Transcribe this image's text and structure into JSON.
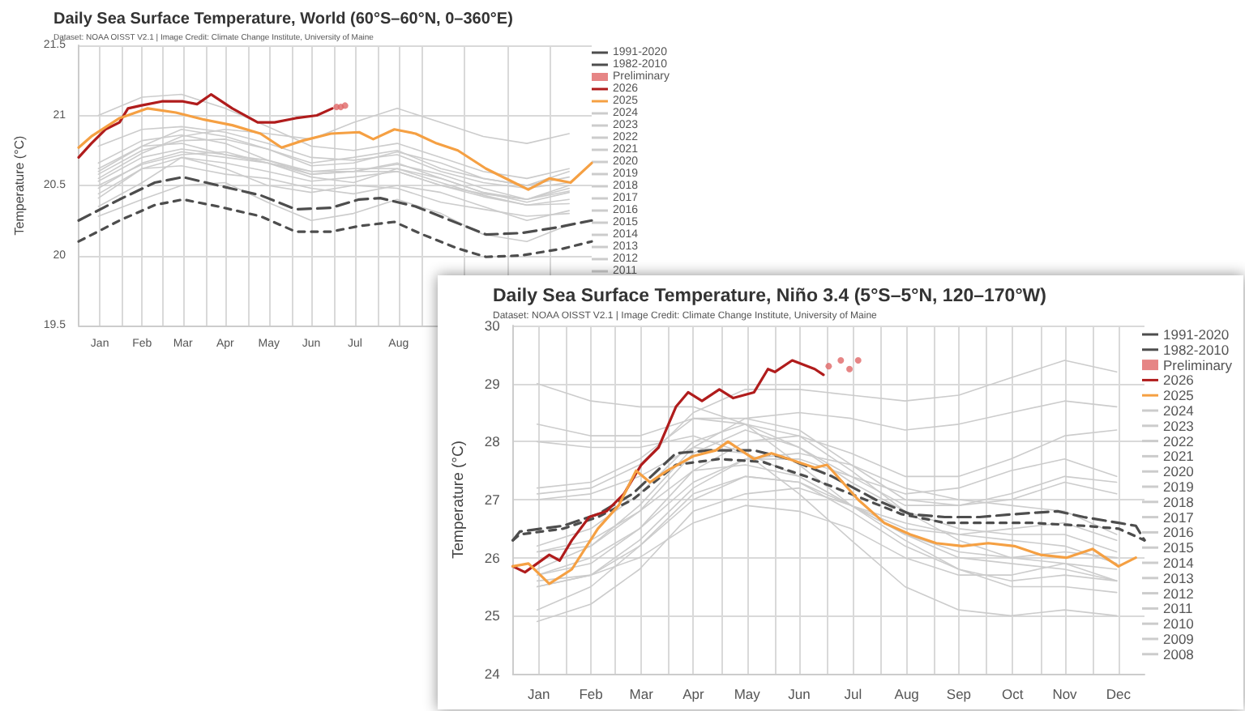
{
  "chart_data": [
    {
      "type": "line",
      "title": "Daily Sea Surface Temperature, World (60°S–60°N, 0–360°E)",
      "subtitle": "Dataset: NOAA OISST V2.1 | Image Credit: Climate Change Institute, University of Maine",
      "ylabel": "Temperature (°C)",
      "xlim": [
        "--01-01",
        "--12-31"
      ],
      "xticks": [
        {
          "value": "--01-16",
          "label": "Jan"
        },
        {
          "value": "--02-01",
          "label": null
        },
        {
          "value": "--02-15",
          "label": "Feb"
        },
        {
          "value": "--03-01",
          "label": null
        },
        {
          "value": "--03-16",
          "label": "Mar"
        },
        {
          "value": "--04-01",
          "label": null
        },
        {
          "value": "--04-15",
          "label": "Apr"
        },
        {
          "value": "--05-01",
          "label": null
        },
        {
          "value": "--05-16",
          "label": "May"
        },
        {
          "value": "--06-01",
          "label": null
        },
        {
          "value": "--06-15",
          "label": "Jun"
        },
        {
          "value": "--07-01",
          "label": null
        },
        {
          "value": "--07-16",
          "label": "Jul"
        },
        {
          "value": "--08-01",
          "label": null
        },
        {
          "value": "--08-16",
          "label": "Aug"
        },
        {
          "value": "--09-01",
          "label": null
        },
        {
          "value": "--10-01",
          "label": null
        },
        {
          "value": "--11-01",
          "label": null
        },
        {
          "value": "--12-01",
          "label": null
        }
      ],
      "ylim": [
        19.5,
        21.5
      ],
      "yticks": [
        19.5,
        20,
        20.5,
        21,
        21.5
      ],
      "grid": true,
      "legend": "right",
      "marker": "none",
      "series": [
        {
          "name": "1991-2020",
          "color": "#4d4d4d",
          "line_style": "dashed",
          "x": [
            "--01-01",
            "--01-30",
            "--02-24",
            "--03-16",
            "--04-10",
            "--05-10",
            "--06-04",
            "--06-29",
            "--07-19",
            "--08-03",
            "--08-28",
            "--09-22",
            "--10-17",
            "--11-11",
            "--12-06",
            "--12-31"
          ],
          "values": [
            20.25,
            20.4,
            20.52,
            20.56,
            20.5,
            20.43,
            20.33,
            20.34,
            20.4,
            20.41,
            20.35,
            20.25,
            20.15,
            20.16,
            20.2,
            20.25
          ]
        },
        {
          "name": "1982-2010",
          "color": "#4d4d4d",
          "line_style": "dotted",
          "x": [
            "--01-01",
            "--01-30",
            "--02-24",
            "--03-16",
            "--04-10",
            "--05-10",
            "--06-04",
            "--06-29",
            "--07-19",
            "--08-13",
            "--09-02",
            "--09-27",
            "--10-17",
            "--11-11",
            "--12-11",
            "--12-31"
          ],
          "values": [
            20.1,
            20.25,
            20.36,
            20.4,
            20.35,
            20.28,
            20.17,
            20.17,
            20.21,
            20.24,
            20.15,
            20.05,
            19.99,
            20.0,
            20.05,
            20.1
          ]
        },
        {
          "name": "Preliminary",
          "type": "scatter",
          "marker": "circle",
          "color": "#e06666",
          "x": [
            "--07-03",
            "--07-06",
            "--07-09"
          ],
          "values": [
            21.06,
            21.06,
            21.07
          ]
        },
        {
          "name": "2026",
          "color": "#b01c1c",
          "x": [
            "--01-01",
            "--01-10",
            "--01-20",
            "--01-30",
            "--02-05",
            "--02-14",
            "--03-01",
            "--03-16",
            "--03-26",
            "--04-05",
            "--04-20",
            "--05-08",
            "--05-20",
            "--06-04",
            "--06-19",
            "--06-30"
          ],
          "values": [
            20.7,
            20.8,
            20.9,
            20.95,
            21.05,
            21.07,
            21.1,
            21.1,
            21.08,
            21.15,
            21.05,
            20.95,
            20.95,
            20.98,
            21.0,
            21.05
          ]
        },
        {
          "name": "2025",
          "color": "#f5a043",
          "x": [
            "--01-01",
            "--01-10",
            "--01-30",
            "--02-19",
            "--03-11",
            "--03-31",
            "--04-20",
            "--05-10",
            "--05-25",
            "--06-09",
            "--06-29",
            "--07-19",
            "--07-29",
            "--08-13",
            "--08-28",
            "--09-12",
            "--09-27",
            "--10-17",
            "--11-06",
            "--11-16",
            "--12-01",
            "--12-16",
            "--12-31"
          ],
          "values": [
            20.77,
            20.85,
            20.98,
            21.05,
            21.02,
            20.97,
            20.93,
            20.87,
            20.77,
            20.82,
            20.87,
            20.88,
            20.83,
            20.9,
            20.87,
            20.8,
            20.75,
            20.62,
            20.52,
            20.47,
            20.55,
            20.52,
            20.66
          ]
        },
        {
          "name": "2024",
          "color": "#cccccc",
          "x": [
            "--01-15",
            "--02-15",
            "--03-15",
            "--04-15",
            "--05-15",
            "--06-15",
            "--07-15",
            "--08-15",
            "--09-15",
            "--10-15",
            "--11-15",
            "--12-15"
          ],
          "values": [
            21.0,
            21.13,
            21.15,
            21.05,
            20.92,
            20.78,
            20.75,
            20.8,
            20.7,
            20.6,
            20.55,
            20.62
          ]
        },
        {
          "name": "2023",
          "color": "#cccccc",
          "x": [
            "--01-15",
            "--02-15",
            "--03-15",
            "--04-15",
            "--05-15",
            "--06-15",
            "--07-15",
            "--08-15",
            "--09-15",
            "--10-15",
            "--11-15",
            "--12-15"
          ],
          "values": [
            20.55,
            20.73,
            20.85,
            20.9,
            20.87,
            20.83,
            20.95,
            21.05,
            20.95,
            20.85,
            20.8,
            20.87
          ]
        },
        {
          "name": "2022",
          "color": "#cccccc",
          "x": [
            "--01-15",
            "--02-15",
            "--03-15",
            "--04-15",
            "--05-15",
            "--06-15",
            "--07-15",
            "--08-15",
            "--09-15",
            "--10-15",
            "--11-15",
            "--12-15"
          ],
          "values": [
            20.53,
            20.7,
            20.76,
            20.72,
            20.68,
            20.6,
            20.62,
            20.62,
            20.52,
            20.43,
            20.36,
            20.37
          ]
        },
        {
          "name": "2021",
          "color": "#cccccc",
          "x": [
            "--01-15",
            "--02-15",
            "--03-15",
            "--04-15",
            "--05-15",
            "--06-15",
            "--07-15",
            "--08-15",
            "--09-15",
            "--10-15",
            "--11-15",
            "--12-15"
          ],
          "values": [
            20.44,
            20.62,
            20.7,
            20.66,
            20.6,
            20.53,
            20.56,
            20.6,
            20.5,
            20.42,
            20.36,
            20.4
          ]
        },
        {
          "name": "2020",
          "color": "#cccccc",
          "x": [
            "--01-15",
            "--02-15",
            "--03-15",
            "--04-15",
            "--05-15",
            "--06-15",
            "--07-15",
            "--08-15",
            "--09-15",
            "--10-15",
            "--11-15",
            "--12-15"
          ],
          "values": [
            20.66,
            20.82,
            20.86,
            20.8,
            20.68,
            20.58,
            20.6,
            20.66,
            20.55,
            20.45,
            20.4,
            20.5
          ]
        },
        {
          "name": "2019",
          "color": "#cccccc",
          "x": [
            "--01-15",
            "--02-15",
            "--03-15",
            "--04-15",
            "--05-15",
            "--06-15",
            "--07-15",
            "--08-15",
            "--09-15",
            "--10-15",
            "--11-15",
            "--12-15"
          ],
          "values": [
            20.62,
            20.78,
            20.9,
            20.85,
            20.76,
            20.64,
            20.66,
            20.74,
            20.66,
            20.55,
            20.5,
            20.56
          ]
        },
        {
          "name": "2018",
          "color": "#cccccc",
          "x": [
            "--01-15",
            "--02-15",
            "--03-15",
            "--04-15",
            "--05-15",
            "--06-15",
            "--07-15",
            "--08-15",
            "--09-15",
            "--10-15",
            "--11-15",
            "--12-15"
          ],
          "values": [
            20.48,
            20.66,
            20.74,
            20.7,
            20.66,
            20.58,
            20.6,
            20.6,
            20.5,
            20.44,
            20.4,
            20.48
          ]
        },
        {
          "name": "2017",
          "color": "#cccccc",
          "x": [
            "--01-15",
            "--02-15",
            "--03-15",
            "--04-15",
            "--05-15",
            "--06-15",
            "--07-15",
            "--08-15",
            "--09-15",
            "--10-15",
            "--11-15",
            "--12-15"
          ],
          "values": [
            20.6,
            20.78,
            20.8,
            20.72,
            20.66,
            20.6,
            20.6,
            20.65,
            20.58,
            20.48,
            20.4,
            20.46
          ]
        },
        {
          "name": "2016",
          "color": "#cccccc",
          "x": [
            "--01-15",
            "--02-15",
            "--03-15",
            "--04-15",
            "--05-15",
            "--06-15",
            "--07-15",
            "--08-15",
            "--09-15",
            "--10-15",
            "--11-15",
            "--12-15"
          ],
          "values": [
            20.78,
            20.9,
            20.92,
            20.88,
            20.8,
            20.7,
            20.68,
            20.72,
            20.6,
            20.52,
            20.48,
            20.52
          ]
        },
        {
          "name": "2015",
          "color": "#cccccc",
          "x": [
            "--01-15",
            "--02-15",
            "--03-15",
            "--04-15",
            "--05-15",
            "--06-15",
            "--07-15",
            "--08-15",
            "--09-15",
            "--10-15",
            "--11-15",
            "--12-15"
          ],
          "values": [
            20.58,
            20.75,
            20.82,
            20.83,
            20.76,
            20.66,
            20.7,
            20.75,
            20.62,
            20.55,
            20.5,
            20.6
          ]
        },
        {
          "name": "2014",
          "color": "#cccccc",
          "x": [
            "--01-15",
            "--02-15",
            "--03-15",
            "--04-15",
            "--05-15",
            "--06-15",
            "--07-15",
            "--08-15",
            "--09-15",
            "--10-15",
            "--11-15",
            "--12-15"
          ],
          "values": [
            20.5,
            20.65,
            20.72,
            20.74,
            20.66,
            20.56,
            20.52,
            20.62,
            20.55,
            20.45,
            20.38,
            20.45
          ]
        },
        {
          "name": "2013",
          "color": "#cccccc",
          "x": [
            "--01-15",
            "--02-15",
            "--03-15",
            "--04-15",
            "--05-15",
            "--06-15",
            "--07-15",
            "--08-15",
            "--09-15",
            "--10-15",
            "--11-15",
            "--12-15"
          ],
          "values": [
            20.41,
            20.62,
            20.64,
            20.58,
            20.55,
            20.48,
            20.44,
            20.5,
            20.45,
            20.35,
            20.25,
            20.32
          ]
        },
        {
          "name": "2012",
          "color": "#cccccc",
          "x": [
            "--01-15",
            "--02-15",
            "--03-15",
            "--04-15",
            "--05-15",
            "--06-15",
            "--07-15",
            "--08-15",
            "--09-15",
            "--10-15",
            "--11-15",
            "--12-15"
          ],
          "values": [
            20.35,
            20.52,
            20.7,
            20.62,
            20.5,
            20.45,
            20.5,
            20.48,
            20.38,
            20.33,
            20.28,
            20.3
          ]
        },
        {
          "name": "2011",
          "color": "#cccccc",
          "x": [
            "--01-15",
            "--02-15",
            "--03-15",
            "--04-15",
            "--05-15",
            "--06-15",
            "--07-15",
            "--08-15",
            "--09-15",
            "--10-15",
            "--11-15",
            "--12-15"
          ],
          "values": [
            20.28,
            20.4,
            20.5,
            20.52,
            20.38,
            20.25,
            20.3,
            20.4,
            20.3,
            20.15,
            20.1,
            20.22
          ]
        }
      ]
    },
    {
      "type": "line",
      "title": "Daily Sea Surface Temperature, Niño 3.4 (5°S–5°N, 120–170°W)",
      "subtitle": "Dataset: NOAA OISST V2.1 | Image Credit: Climate Change Institute, University of Maine",
      "ylabel": "Temperature (°C)",
      "xlim": [
        "--01-01",
        "--12-31"
      ],
      "xticks": [
        {
          "value": "--01-16",
          "label": "Jan"
        },
        {
          "value": "--02-01",
          "label": null
        },
        {
          "value": "--02-15",
          "label": "Feb"
        },
        {
          "value": "--03-01",
          "label": null
        },
        {
          "value": "--03-16",
          "label": "Mar"
        },
        {
          "value": "--04-01",
          "label": null
        },
        {
          "value": "--04-15",
          "label": "Apr"
        },
        {
          "value": "--05-01",
          "label": null
        },
        {
          "value": "--05-16",
          "label": "May"
        },
        {
          "value": "--06-01",
          "label": null
        },
        {
          "value": "--06-15",
          "label": "Jun"
        },
        {
          "value": "--07-01",
          "label": null
        },
        {
          "value": "--07-16",
          "label": "Jul"
        },
        {
          "value": "--08-01",
          "label": null
        },
        {
          "value": "--08-16",
          "label": "Aug"
        },
        {
          "value": "--09-01",
          "label": null
        },
        {
          "value": "--09-15",
          "label": "Sep"
        },
        {
          "value": "--10-01",
          "label": null
        },
        {
          "value": "--10-16",
          "label": "Oct"
        },
        {
          "value": "--11-01",
          "label": null
        },
        {
          "value": "--11-15",
          "label": "Nov"
        },
        {
          "value": "--12-01",
          "label": null
        },
        {
          "value": "--12-16",
          "label": "Dec"
        }
      ],
      "ylim": [
        24,
        30
      ],
      "yticks": [
        24,
        25,
        26,
        27,
        28,
        29,
        30
      ],
      "grid": true,
      "legend": "right",
      "marker": "none",
      "series": [
        {
          "name": "1991-2020",
          "color": "#4d4d4d",
          "line_style": "dashed",
          "x": [
            "--01-01",
            "--01-05",
            "--01-30",
            "--02-19",
            "--03-11",
            "--04-05",
            "--04-25",
            "--05-20",
            "--06-09",
            "--07-04",
            "--07-29",
            "--08-18",
            "--09-07",
            "--09-27",
            "--10-17",
            "--11-11",
            "--11-26",
            "--12-16",
            "--12-26",
            "--12-31"
          ],
          "values": [
            26.3,
            26.45,
            26.55,
            26.75,
            27.1,
            27.8,
            27.85,
            27.85,
            27.7,
            27.4,
            27.0,
            26.75,
            26.7,
            26.7,
            26.75,
            26.8,
            26.7,
            26.6,
            26.55,
            26.3
          ]
        },
        {
          "name": "1982-2010",
          "color": "#4d4d4d",
          "line_style": "dotted",
          "x": [
            "--01-01",
            "--01-05",
            "--01-30",
            "--02-19",
            "--03-11",
            "--04-05",
            "--04-30",
            "--05-25",
            "--06-19",
            "--07-19",
            "--08-13",
            "--09-07",
            "--10-02",
            "--10-27",
            "--11-26",
            "--12-16",
            "--12-31"
          ],
          "values": [
            26.3,
            26.4,
            26.5,
            26.7,
            27.0,
            27.6,
            27.7,
            27.65,
            27.4,
            27.05,
            26.75,
            26.6,
            26.6,
            26.6,
            26.55,
            26.5,
            26.3
          ]
        },
        {
          "name": "Preliminary",
          "type": "scatter",
          "marker": "circle",
          "color": "#e06666",
          "x": [
            "--07-02",
            "--07-09",
            "--07-14",
            "--07-19"
          ],
          "values": [
            29.3,
            29.4,
            29.25,
            29.4
          ]
        },
        {
          "name": "2026",
          "color": "#b01c1c",
          "x": [
            "--01-01",
            "--01-08",
            "--01-15",
            "--01-22",
            "--01-28",
            "--02-04",
            "--02-14",
            "--02-24",
            "--03-06",
            "--03-16",
            "--03-26",
            "--04-05",
            "--04-12",
            "--04-20",
            "--04-30",
            "--05-08",
            "--05-20",
            "--05-28",
            "--06-01",
            "--06-11",
            "--06-24",
            "--06-29"
          ],
          "values": [
            25.85,
            25.75,
            25.9,
            26.05,
            25.95,
            26.3,
            26.7,
            26.8,
            27.1,
            27.6,
            27.9,
            28.6,
            28.85,
            28.7,
            28.9,
            28.75,
            28.85,
            29.25,
            29.2,
            29.4,
            29.25,
            29.15
          ]
        },
        {
          "name": "2025",
          "color": "#f5a043",
          "x": [
            "--01-01",
            "--01-10",
            "--01-22",
            "--02-04",
            "--02-19",
            "--03-03",
            "--03-13",
            "--03-21",
            "--03-31",
            "--04-15",
            "--04-28",
            "--05-05",
            "--05-20",
            "--05-30",
            "--06-09",
            "--06-24",
            "--07-01",
            "--07-19",
            "--08-03",
            "--08-18",
            "--09-02",
            "--09-17",
            "--10-02",
            "--10-17",
            "--11-01",
            "--11-16",
            "--12-01",
            "--12-16",
            "--12-26"
          ],
          "values": [
            25.85,
            25.9,
            25.55,
            25.8,
            26.5,
            26.9,
            27.5,
            27.3,
            27.5,
            27.75,
            27.85,
            28.0,
            27.7,
            27.8,
            27.7,
            27.55,
            27.6,
            27.0,
            26.6,
            26.4,
            26.25,
            26.2,
            26.25,
            26.2,
            26.05,
            26.0,
            26.15,
            25.85,
            26.0
          ]
        },
        {
          "name": "2024",
          "color": "#cccccc",
          "x": [
            "--01-15",
            "--02-15",
            "--03-15",
            "--04-15",
            "--05-15",
            "--06-15",
            "--07-15",
            "--08-15",
            "--09-15",
            "--10-15",
            "--11-15",
            "--12-15"
          ],
          "values": [
            28.3,
            28.1,
            28.1,
            28.4,
            28.3,
            27.9,
            27.3,
            26.8,
            26.5,
            26.4,
            26.4,
            26.1
          ]
        },
        {
          "name": "2023",
          "color": "#cccccc",
          "x": [
            "--01-15",
            "--02-15",
            "--03-15",
            "--04-15",
            "--05-15",
            "--06-15",
            "--07-15",
            "--08-15",
            "--09-15",
            "--10-15",
            "--11-15",
            "--12-15"
          ],
          "values": [
            25.8,
            26.2,
            26.9,
            27.9,
            28.4,
            28.5,
            28.4,
            28.2,
            28.3,
            28.5,
            28.7,
            28.6
          ]
        },
        {
          "name": "2022",
          "color": "#cccccc",
          "x": [
            "--01-15",
            "--02-15",
            "--03-15",
            "--04-15",
            "--05-15",
            "--06-15",
            "--07-15",
            "--08-15",
            "--09-15",
            "--10-15",
            "--11-15",
            "--12-15"
          ],
          "values": [
            25.5,
            25.7,
            26.0,
            26.6,
            26.9,
            26.8,
            26.5,
            26.0,
            25.7,
            25.7,
            25.9,
            25.8
          ]
        },
        {
          "name": "2021",
          "color": "#cccccc",
          "x": [
            "--01-15",
            "--02-15",
            "--03-15",
            "--04-15",
            "--05-15",
            "--06-15",
            "--07-15",
            "--08-15",
            "--09-15",
            "--10-15",
            "--11-15",
            "--12-15"
          ],
          "values": [
            25.5,
            25.7,
            26.2,
            27.0,
            27.4,
            27.3,
            26.9,
            26.4,
            26.0,
            25.9,
            25.8,
            25.6
          ]
        },
        {
          "name": "2020",
          "color": "#cccccc",
          "x": [
            "--01-15",
            "--02-15",
            "--03-15",
            "--04-15",
            "--05-15",
            "--06-15",
            "--07-15",
            "--08-15",
            "--09-15",
            "--10-15",
            "--11-15",
            "--12-15"
          ],
          "values": [
            27.0,
            27.1,
            27.4,
            27.9,
            27.8,
            27.4,
            26.9,
            26.3,
            25.8,
            25.5,
            25.5,
            25.4
          ]
        },
        {
          "name": "2019",
          "color": "#cccccc",
          "x": [
            "--01-15",
            "--02-15",
            "--03-15",
            "--04-15",
            "--05-15",
            "--06-15",
            "--07-15",
            "--08-15",
            "--09-15",
            "--10-15",
            "--11-15",
            "--12-15"
          ],
          "values": [
            27.2,
            27.3,
            27.7,
            28.4,
            28.4,
            28.2,
            27.6,
            27.0,
            26.9,
            27.0,
            27.3,
            27.1
          ]
        },
        {
          "name": "2018",
          "color": "#cccccc",
          "x": [
            "--01-15",
            "--02-15",
            "--03-15",
            "--04-15",
            "--05-15",
            "--06-15",
            "--07-15",
            "--08-15",
            "--09-15",
            "--10-15",
            "--11-15",
            "--12-15"
          ],
          "values": [
            25.6,
            25.7,
            26.3,
            27.2,
            27.7,
            27.7,
            27.4,
            27.1,
            27.2,
            27.5,
            27.7,
            27.4
          ]
        },
        {
          "name": "2017",
          "color": "#cccccc",
          "x": [
            "--01-15",
            "--02-15",
            "--03-15",
            "--04-15",
            "--05-15",
            "--06-15",
            "--07-15",
            "--08-15",
            "--09-15",
            "--10-15",
            "--11-15",
            "--12-15"
          ],
          "values": [
            26.2,
            26.5,
            27.1,
            28.0,
            28.3,
            28.1,
            27.5,
            26.8,
            26.3,
            26.0,
            25.9,
            25.6
          ]
        },
        {
          "name": "2016",
          "color": "#cccccc",
          "x": [
            "--01-15",
            "--02-15",
            "--03-15",
            "--04-15",
            "--05-15",
            "--06-15",
            "--07-15",
            "--08-15",
            "--09-15",
            "--10-15",
            "--11-15",
            "--12-15"
          ],
          "values": [
            29.0,
            28.7,
            28.6,
            28.6,
            28.3,
            27.6,
            26.9,
            26.4,
            26.1,
            26.0,
            26.1,
            26.0
          ]
        },
        {
          "name": "2015",
          "color": "#cccccc",
          "x": [
            "--01-15",
            "--02-15",
            "--03-15",
            "--04-15",
            "--05-15",
            "--06-15",
            "--07-15",
            "--08-15",
            "--09-15",
            "--10-15",
            "--11-15",
            "--12-15"
          ],
          "values": [
            27.1,
            27.2,
            27.6,
            28.5,
            28.9,
            28.9,
            28.8,
            28.7,
            28.8,
            29.1,
            29.4,
            29.2
          ]
        },
        {
          "name": "2014",
          "color": "#cccccc",
          "x": [
            "--01-15",
            "--02-15",
            "--03-15",
            "--04-15",
            "--05-15",
            "--06-15",
            "--07-15",
            "--08-15",
            "--09-15",
            "--10-15",
            "--11-15",
            "--12-15"
          ],
          "values": [
            26.1,
            26.2,
            26.8,
            27.8,
            28.2,
            27.9,
            27.4,
            26.9,
            26.9,
            27.1,
            27.4,
            27.3
          ]
        },
        {
          "name": "2013",
          "color": "#cccccc",
          "x": [
            "--01-15",
            "--02-15",
            "--03-15",
            "--04-15",
            "--05-15",
            "--06-15",
            "--07-15",
            "--08-15",
            "--09-15",
            "--10-15",
            "--11-15",
            "--12-15"
          ],
          "values": [
            26.1,
            26.3,
            26.8,
            27.5,
            27.6,
            27.4,
            26.9,
            26.5,
            26.4,
            26.5,
            26.6,
            26.3
          ]
        },
        {
          "name": "2012",
          "color": "#cccccc",
          "x": [
            "--01-15",
            "--02-15",
            "--03-15",
            "--04-15",
            "--05-15",
            "--06-15",
            "--07-15",
            "--08-15",
            "--09-15",
            "--10-15",
            "--11-15",
            "--12-15"
          ],
          "values": [
            25.7,
            26.0,
            26.5,
            27.3,
            27.7,
            27.8,
            27.6,
            27.2,
            27.0,
            26.9,
            26.8,
            26.4
          ]
        },
        {
          "name": "2011",
          "color": "#cccccc",
          "x": [
            "--01-15",
            "--02-15",
            "--03-15",
            "--04-15",
            "--05-15",
            "--06-15",
            "--07-15",
            "--08-15",
            "--09-15",
            "--10-15",
            "--11-15",
            "--12-15"
          ],
          "values": [
            25.1,
            25.5,
            26.2,
            27.1,
            27.4,
            27.3,
            26.8,
            26.2,
            25.8,
            25.6,
            25.7,
            25.6
          ]
        },
        {
          "name": "2010",
          "color": "#cccccc",
          "x": [
            "--01-15",
            "--02-15",
            "--03-15",
            "--04-15",
            "--05-15",
            "--06-15",
            "--07-15",
            "--08-15",
            "--09-15",
            "--10-15",
            "--11-15",
            "--12-15"
          ],
          "values": [
            28.0,
            27.9,
            27.9,
            28.1,
            27.8,
            27.1,
            26.3,
            25.5,
            25.1,
            25.0,
            25.1,
            25.0
          ]
        },
        {
          "name": "2009",
          "color": "#cccccc",
          "x": [
            "--01-15",
            "--02-15",
            "--03-15",
            "--04-15",
            "--05-15",
            "--06-15",
            "--07-15",
            "--08-15",
            "--09-15",
            "--10-15",
            "--11-15",
            "--12-15"
          ],
          "values": [
            25.7,
            25.9,
            26.5,
            27.5,
            28.0,
            28.1,
            27.8,
            27.4,
            27.4,
            27.7,
            28.1,
            28.2
          ]
        },
        {
          "name": "2008",
          "color": "#cccccc",
          "x": [
            "--01-15",
            "--02-15",
            "--03-15",
            "--04-15",
            "--05-15",
            "--06-15",
            "--07-15",
            "--08-15",
            "--09-15",
            "--10-15",
            "--11-15",
            "--12-15"
          ],
          "values": [
            24.9,
            25.2,
            25.8,
            26.8,
            27.1,
            27.2,
            26.9,
            26.6,
            26.4,
            26.3,
            26.2,
            25.9
          ]
        }
      ]
    }
  ]
}
